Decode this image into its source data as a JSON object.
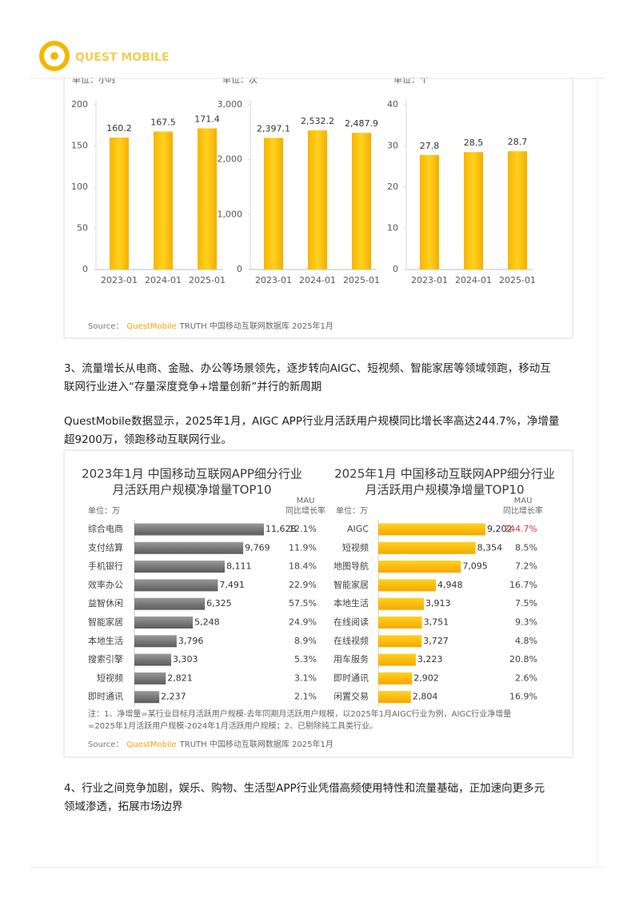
{
  "header": {
    "logo": "QUEST MOBILE"
  },
  "figure1": {
    "charts": [
      {
        "unit": "单位：小时",
        "categories": [
          "2023-01",
          "2024-01",
          "2025-01"
        ],
        "values": [
          160.2,
          167.5,
          171.4
        ],
        "ylim": [
          0,
          200
        ],
        "yticks": [
          0,
          50,
          100,
          150,
          200
        ]
      },
      {
        "unit": "单位：次",
        "categories": [
          "2023-01",
          "2024-01",
          "2025-01"
        ],
        "values": [
          2397.1,
          2532.2,
          2487.9
        ],
        "value_labels": [
          "2,397.1",
          "2,532.2",
          "2,487.9"
        ],
        "ylim": [
          0,
          3000
        ],
        "yticks": [
          0,
          {
            "value": 1000,
            "label": "1,000"
          },
          {
            "value": 2000,
            "label": "2,000"
          },
          {
            "value": 3000,
            "label": "3,000"
          }
        ]
      },
      {
        "unit": "单位：个",
        "categories": [
          "2023-01",
          "2024-01",
          "2025-01"
        ],
        "values": [
          27.8,
          28.5,
          28.7
        ],
        "ylim": [
          0,
          40
        ],
        "yticks": [
          0,
          10,
          20,
          30,
          40
        ]
      }
    ],
    "source_label": "Source：",
    "source_brand": "QuestMobile",
    "source_text": "TRUTH 中国移动互联网数据库 2025年1月"
  },
  "paragraphs": [
    [
      "3、流量增长从电商、金融、办公等场景领先，逐步转向AIGC、短视频、智能家居等领域领跑，移动互",
      "联网行业进入“存量深度竞争+增量创新”并行的新周期"
    ],
    [
      "QuestMobile数据显示，2025年1月，AIGC APP行业月活跃用户规模同比增长率高达244.7%，净增量",
      "超9200万，领跑移动互联网行业。"
    ]
  ],
  "figure2": {
    "charts": [
      {
        "title_lines": [
          "2023年1月 中国移动互联网APP细分行业",
          "月活跃用户规模净增量TOP10"
        ],
        "unit": "单位：万",
        "growth_header": [
          "MAU",
          "同比增长率"
        ],
        "categories": [
          "综合电商",
          "支付结算",
          "手机银行",
          "效率办公",
          "益智休闲",
          "智能家居",
          "本地生活",
          "搜索引擎",
          "短视频",
          "即时通讯"
        ],
        "values": [
          11628,
          9769,
          8111,
          7491,
          6325,
          5248,
          3796,
          3303,
          2821,
          2237
        ],
        "value_labels": [
          "11,628",
          "9,769",
          "8,111",
          "7,491",
          "6,325",
          "5,248",
          "3,796",
          "3,303",
          "2,821",
          "2,237"
        ],
        "growth_labels": [
          "12.1%",
          "11.9%",
          "18.4%",
          "22.9%",
          "57.5%",
          "24.9%",
          "8.9%",
          "5.3%",
          "3.1%",
          "2.1%"
        ]
      },
      {
        "title_lines": [
          "2025年1月 中国移动互联网APP细分行业",
          "月活跃用户规模净增量TOP10"
        ],
        "unit": "单位：万",
        "growth_header": [
          "MAU",
          "同比增长率"
        ],
        "categories": [
          "AIGC",
          "短视频",
          "地图导航",
          "智能家居",
          "本地生活",
          "在线阅读",
          "在线视频",
          "用车服务",
          "即时通讯",
          "闲置交易"
        ],
        "values": [
          9202,
          8354,
          7095,
          4948,
          3913,
          3751,
          3727,
          3223,
          2902,
          2804
        ],
        "value_labels": [
          "9,202",
          "8,354",
          "7,095",
          "4,948",
          "3,913",
          "3,751",
          "3,727",
          "3,223",
          "2,902",
          "2,804"
        ],
        "growth_labels": [
          "244.7%",
          "8.5%",
          "7.2%",
          "16.7%",
          "7.5%",
          "9.3%",
          "4.8%",
          "20.8%",
          "2.6%",
          "16.9%"
        ]
      }
    ],
    "note_lines": [
      "注：1、净增量=某行业目标月活跃用户规模-去年同期月活跃用户规模，以2025年1月AIGC行业为例，AIGC行业净增量",
      "=2025年1月活跃用户规模-2024年1月活跃用户规模；2、已剔除纯工具类行业。"
    ],
    "source_label": "Source：",
    "source_brand": "QuestMobile",
    "source_text": "TRUTH 中国移动互联网数据库 2025年1月"
  },
  "closing": [
    "4、行业之间竞争加剧，娱乐、购物、生活型APP行业凭借高频使用特性和流量基础，正加速向更多元",
    "领域渗透，拓展市场边界"
  ]
}
